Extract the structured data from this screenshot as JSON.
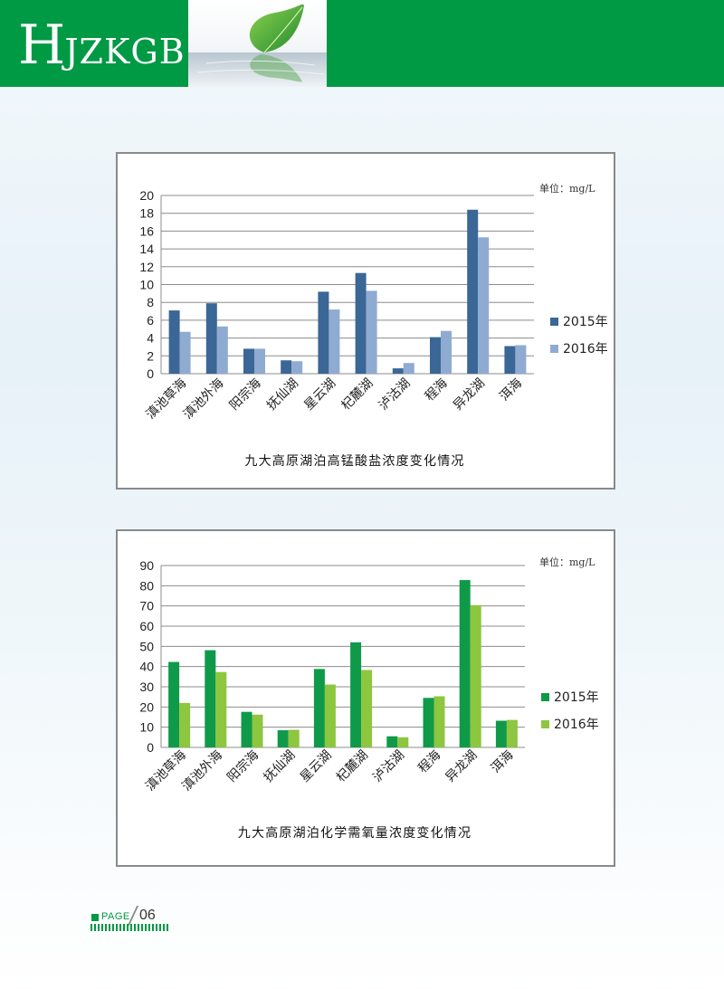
{
  "header": {
    "logo_big": "H",
    "logo_rest": "JZKGB"
  },
  "footer": {
    "page_label": "PAGE",
    "page_number": "06"
  },
  "chart_data": [
    {
      "type": "bar",
      "title": "九大高原湖泊高锰酸盐浓度变化情况",
      "unit": "单位：mg/L",
      "categories": [
        "滇池草海",
        "滇池外海",
        "阳宗海",
        "抚仙湖",
        "星云湖",
        "杞麓湖",
        "泸沽湖",
        "程海",
        "异龙湖",
        "洱海"
      ],
      "series": [
        {
          "name": "2015年",
          "color": "#3a6796",
          "values": [
            7.1,
            7.9,
            2.8,
            1.5,
            9.2,
            11.3,
            0.6,
            4.1,
            18.4,
            3.1
          ]
        },
        {
          "name": "2016年",
          "color": "#8fabd1",
          "values": [
            4.7,
            5.3,
            2.8,
            1.4,
            7.2,
            9.3,
            1.2,
            4.8,
            15.3,
            3.2
          ]
        }
      ],
      "ylim": [
        0,
        20
      ],
      "yticks": [
        0,
        2,
        4,
        6,
        8,
        10,
        12,
        14,
        16,
        18,
        20
      ],
      "grid": true,
      "legend": "right"
    },
    {
      "type": "bar",
      "title": "九大高原湖泊化学需氧量浓度变化情况",
      "unit": "单位：mg/L",
      "categories": [
        "滇池草海",
        "滇池外海",
        "阳宗海",
        "抚仙湖",
        "星云湖",
        "杞麓湖",
        "泸沽湖",
        "程海",
        "异龙湖",
        "洱海"
      ],
      "series": [
        {
          "name": "2015年",
          "color": "#0f9a4a",
          "values": [
            42.3,
            48.1,
            17.6,
            8.5,
            38.8,
            52.0,
            5.5,
            24.5,
            82.8,
            13.2
          ]
        },
        {
          "name": "2016年",
          "color": "#8dc63f",
          "values": [
            22.0,
            37.3,
            16.2,
            8.7,
            31.1,
            38.3,
            5.0,
            25.3,
            70.4,
            13.6
          ]
        }
      ],
      "ylim": [
        0,
        90
      ],
      "yticks": [
        0,
        10,
        20,
        30,
        40,
        50,
        60,
        70,
        80,
        90
      ],
      "grid": true,
      "legend": "right"
    }
  ]
}
